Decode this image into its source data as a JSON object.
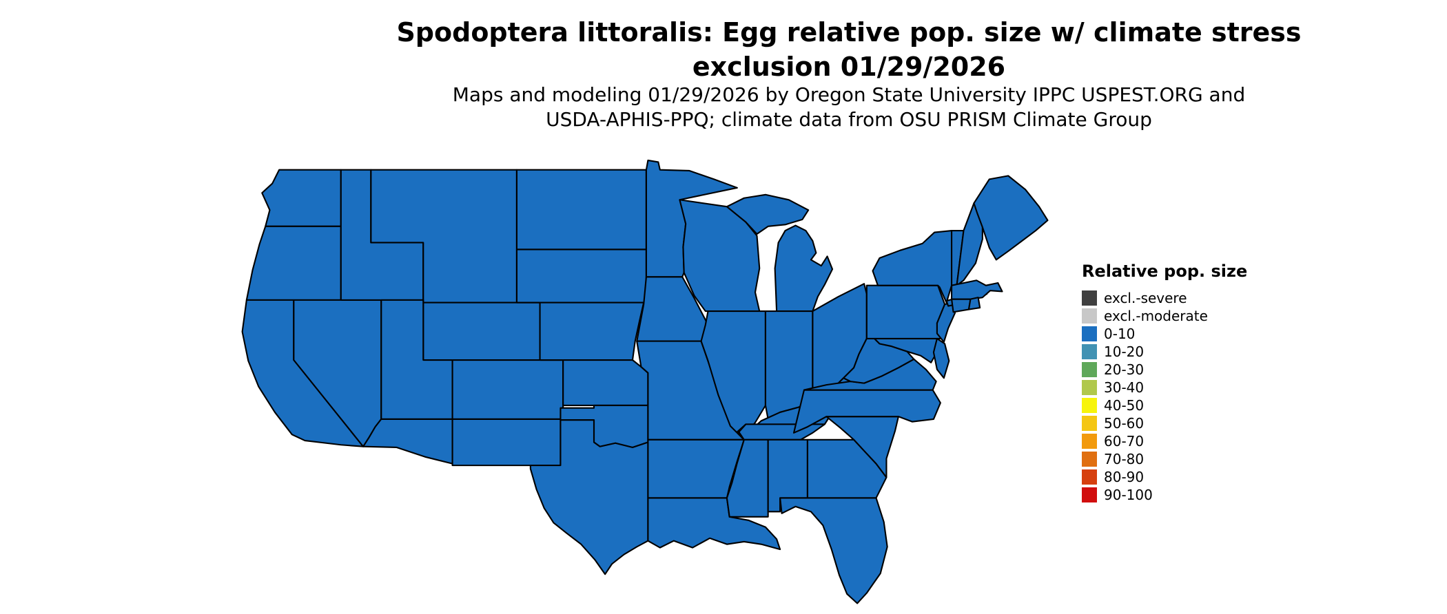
{
  "page": {
    "background": "#FFFFFF"
  },
  "title": {
    "line1": "Spodoptera littoralis: Egg relative pop. size w/ climate stress",
    "line2": "exclusion 01/29/2026"
  },
  "subtitle": {
    "line1": "Maps and modeling 01/29/2026 by Oregon State University IPPC USPEST.ORG and",
    "line2": "USDA-APHIS-PPQ; climate data from OSU PRISM Climate Group"
  },
  "legend": {
    "title": "Relative pop. size",
    "items": [
      {
        "label": "excl.-severe",
        "color": "#404040"
      },
      {
        "label": "excl.-moderate",
        "color": "#C8C8C8"
      },
      {
        "label": "0-10",
        "color": "#1B6FC0"
      },
      {
        "label": "10-20",
        "color": "#4192B3"
      },
      {
        "label": "20-30",
        "color": "#5FA85A"
      },
      {
        "label": "30-40",
        "color": "#B0C84C"
      },
      {
        "label": "40-50",
        "color": "#F7F40C"
      },
      {
        "label": "50-60",
        "color": "#F4C613"
      },
      {
        "label": "60-70",
        "color": "#F29A0D"
      },
      {
        "label": "70-80",
        "color": "#E06F10"
      },
      {
        "label": "80-90",
        "color": "#D6400F"
      },
      {
        "label": "90-100",
        "color": "#D10E0E"
      }
    ]
  },
  "map": {
    "region": "Contiguous United States",
    "all_states_category": "0-10",
    "state_fill": "#1B6FC0",
    "state_border_color": "#000000"
  }
}
